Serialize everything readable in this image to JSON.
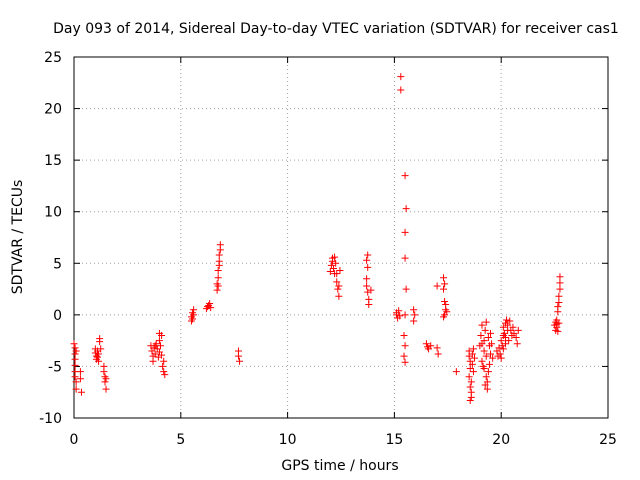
{
  "chart_data": {
    "type": "scatter",
    "title": "Day 093 of 2014, Sidereal Day-to-day VTEC variation (SDTVAR) for receiver cas1",
    "xlabel": "GPS time / hours",
    "ylabel": "SDTVAR / TECUs",
    "xlim": [
      0,
      25
    ],
    "ylim": [
      -10,
      25
    ],
    "x_ticks": [
      0,
      5,
      10,
      15,
      20,
      25
    ],
    "y_ticks": [
      -10,
      -5,
      0,
      5,
      10,
      15,
      20,
      25
    ],
    "grid": true,
    "marker": "+",
    "color": "#ff0000",
    "series": [
      {
        "name": "SDTVAR",
        "points": [
          [
            0.0,
            -2.8
          ],
          [
            0.05,
            -3.2
          ],
          [
            0.05,
            -3.8
          ],
          [
            0.05,
            -4.3
          ],
          [
            0.05,
            -4.9
          ],
          [
            0.05,
            -5.5
          ],
          [
            0.05,
            -6.0
          ],
          [
            0.1,
            -6.5
          ],
          [
            0.1,
            -7.2
          ],
          [
            0.1,
            -3.5
          ],
          [
            0.3,
            -5.5
          ],
          [
            0.3,
            -6.2
          ],
          [
            0.35,
            -7.5
          ],
          [
            1.0,
            -3.3
          ],
          [
            1.0,
            -3.7
          ],
          [
            1.05,
            -4.0
          ],
          [
            1.05,
            -4.3
          ],
          [
            1.1,
            -3.5
          ],
          [
            1.1,
            -4.1
          ],
          [
            1.15,
            -3.8
          ],
          [
            1.15,
            -4.5
          ],
          [
            1.2,
            -2.3
          ],
          [
            1.2,
            -2.6
          ],
          [
            1.25,
            -3.3
          ],
          [
            1.4,
            -5.0
          ],
          [
            1.4,
            -5.5
          ],
          [
            1.45,
            -6.0
          ],
          [
            1.45,
            -6.5
          ],
          [
            1.5,
            -6.2
          ],
          [
            1.5,
            -7.2
          ],
          [
            3.6,
            -3.0
          ],
          [
            3.65,
            -3.5
          ],
          [
            3.7,
            -4.0
          ],
          [
            3.75,
            -3.2
          ],
          [
            3.8,
            -3.8
          ],
          [
            3.85,
            -2.8
          ],
          [
            3.9,
            -3.3
          ],
          [
            3.95,
            -4.1
          ],
          [
            4.0,
            -3.6
          ],
          [
            4.0,
            -2.5
          ],
          [
            4.0,
            -1.8
          ],
          [
            4.05,
            -3.0
          ],
          [
            4.1,
            -2.0
          ],
          [
            4.1,
            -3.9
          ],
          [
            4.15,
            -5.0
          ],
          [
            4.2,
            -5.5
          ],
          [
            4.2,
            -4.5
          ],
          [
            4.25,
            -5.8
          ],
          [
            3.7,
            -4.5
          ],
          [
            3.8,
            -3.0
          ],
          [
            5.5,
            -0.6
          ],
          [
            5.5,
            -0.2
          ],
          [
            5.55,
            0.2
          ],
          [
            5.6,
            0.5
          ],
          [
            5.6,
            0.0
          ],
          [
            5.55,
            -0.4
          ],
          [
            6.2,
            0.6
          ],
          [
            6.3,
            0.9
          ],
          [
            6.4,
            0.7
          ],
          [
            6.35,
            1.1
          ],
          [
            6.25,
            0.8
          ],
          [
            6.7,
            2.4
          ],
          [
            6.7,
            3.0
          ],
          [
            6.75,
            3.6
          ],
          [
            6.75,
            4.3
          ],
          [
            6.8,
            5.2
          ],
          [
            6.8,
            5.8
          ],
          [
            6.85,
            6.3
          ],
          [
            6.85,
            6.8
          ],
          [
            6.75,
            2.8
          ],
          [
            6.8,
            4.8
          ],
          [
            7.7,
            -3.5
          ],
          [
            7.7,
            -4.0
          ],
          [
            7.75,
            -4.5
          ],
          [
            12.0,
            4.2
          ],
          [
            12.05,
            4.8
          ],
          [
            12.1,
            5.2
          ],
          [
            12.15,
            4.5
          ],
          [
            12.2,
            5.6
          ],
          [
            12.25,
            5.0
          ],
          [
            12.3,
            4.0
          ],
          [
            12.3,
            3.2
          ],
          [
            12.35,
            2.5
          ],
          [
            12.4,
            1.8
          ],
          [
            12.4,
            2.8
          ],
          [
            12.45,
            4.3
          ],
          [
            12.2,
            4.0
          ],
          [
            12.1,
            5.5
          ],
          [
            13.7,
            5.3
          ],
          [
            13.75,
            5.8
          ],
          [
            13.75,
            4.6
          ],
          [
            13.7,
            3.5
          ],
          [
            13.7,
            2.8
          ],
          [
            13.75,
            2.2
          ],
          [
            13.8,
            1.5
          ],
          [
            13.8,
            1.0
          ],
          [
            13.9,
            2.4
          ],
          [
            15.1,
            0.0
          ],
          [
            15.15,
            -0.3
          ],
          [
            15.2,
            0.4
          ],
          [
            15.1,
            0.2
          ],
          [
            15.25,
            -0.1
          ],
          [
            15.3,
            23.1
          ],
          [
            15.3,
            21.8
          ],
          [
            15.5,
            13.5
          ],
          [
            15.55,
            10.3
          ],
          [
            15.5,
            8.0
          ],
          [
            15.5,
            5.5
          ],
          [
            15.55,
            2.5
          ],
          [
            15.5,
            0.0
          ],
          [
            15.45,
            -2.0
          ],
          [
            15.5,
            -3.0
          ],
          [
            15.45,
            -4.0
          ],
          [
            15.5,
            -4.6
          ],
          [
            15.9,
            0.5
          ],
          [
            15.95,
            0.0
          ],
          [
            15.9,
            -0.6
          ],
          [
            16.5,
            -2.8
          ],
          [
            16.55,
            -3.1
          ],
          [
            16.6,
            -3.3
          ],
          [
            16.7,
            -3.0
          ],
          [
            17.0,
            -3.2
          ],
          [
            17.05,
            -3.8
          ],
          [
            17.0,
            2.8
          ],
          [
            17.3,
            3.6
          ],
          [
            17.35,
            3.0
          ],
          [
            17.3,
            2.5
          ],
          [
            17.35,
            1.3
          ],
          [
            17.4,
            0.5
          ],
          [
            17.35,
            0.0
          ],
          [
            17.3,
            -0.2
          ],
          [
            17.4,
            1.0
          ],
          [
            17.45,
            0.3
          ],
          [
            17.9,
            -5.5
          ],
          [
            18.5,
            -3.5
          ],
          [
            18.5,
            -4.0
          ],
          [
            18.55,
            -4.5
          ],
          [
            18.55,
            -5.2
          ],
          [
            18.5,
            -6.0
          ],
          [
            18.55,
            -7.0
          ],
          [
            18.6,
            -7.5
          ],
          [
            18.6,
            -8.0
          ],
          [
            18.65,
            -3.8
          ],
          [
            18.65,
            -4.8
          ],
          [
            18.7,
            -5.5
          ],
          [
            18.7,
            -3.3
          ],
          [
            18.75,
            -4.2
          ],
          [
            18.6,
            -6.5
          ],
          [
            18.55,
            -8.3
          ],
          [
            19.0,
            -3.0
          ],
          [
            19.05,
            -2.0
          ],
          [
            19.1,
            -1.0
          ],
          [
            19.1,
            -4.5
          ],
          [
            19.15,
            -5.0
          ],
          [
            19.2,
            -2.5
          ],
          [
            19.2,
            -3.5
          ],
          [
            19.25,
            -1.5
          ],
          [
            19.3,
            -4.0
          ],
          [
            19.3,
            -6.0
          ],
          [
            19.35,
            -6.5
          ],
          [
            19.35,
            -7.2
          ],
          [
            19.4,
            -2.2
          ],
          [
            19.4,
            -5.5
          ],
          [
            19.45,
            -3.0
          ],
          [
            19.45,
            -4.8
          ],
          [
            19.5,
            -1.8
          ],
          [
            19.5,
            -3.8
          ],
          [
            19.55,
            -2.8
          ],
          [
            19.6,
            -4.2
          ],
          [
            19.1,
            -2.8
          ],
          [
            19.2,
            -5.2
          ],
          [
            19.3,
            -0.7
          ],
          [
            19.25,
            -6.8
          ],
          [
            19.8,
            -3.5
          ],
          [
            19.85,
            -4.0
          ],
          [
            19.9,
            -3.2
          ],
          [
            19.95,
            -3.8
          ],
          [
            20.0,
            -2.5
          ],
          [
            20.0,
            -4.2
          ],
          [
            20.05,
            -3.0
          ],
          [
            20.1,
            -2.0
          ],
          [
            20.1,
            -1.2
          ],
          [
            20.15,
            -1.8
          ],
          [
            20.2,
            -0.8
          ],
          [
            20.2,
            -2.2
          ],
          [
            20.25,
            -0.5
          ],
          [
            20.3,
            -1.0
          ],
          [
            20.3,
            -1.5
          ],
          [
            20.35,
            -2.5
          ],
          [
            20.4,
            -0.6
          ],
          [
            20.45,
            -1.5
          ],
          [
            20.5,
            -2.0
          ],
          [
            20.55,
            -1.2
          ],
          [
            20.6,
            -1.8
          ],
          [
            20.7,
            -2.2
          ],
          [
            20.75,
            -2.8
          ],
          [
            20.8,
            -1.5
          ],
          [
            20.1,
            -3.3
          ],
          [
            20.2,
            -2.8
          ],
          [
            22.5,
            -1.0
          ],
          [
            22.55,
            -1.5
          ],
          [
            22.6,
            -1.2
          ],
          [
            22.6,
            -0.5
          ],
          [
            22.65,
            0.3
          ],
          [
            22.65,
            0.8
          ],
          [
            22.7,
            1.2
          ],
          [
            22.7,
            1.8
          ],
          [
            22.75,
            2.5
          ],
          [
            22.75,
            3.1
          ],
          [
            22.75,
            3.7
          ],
          [
            22.7,
            -0.8
          ],
          [
            22.65,
            -1.6
          ],
          [
            22.6,
            -0.9
          ],
          [
            22.55,
            -0.7
          ]
        ]
      }
    ]
  }
}
